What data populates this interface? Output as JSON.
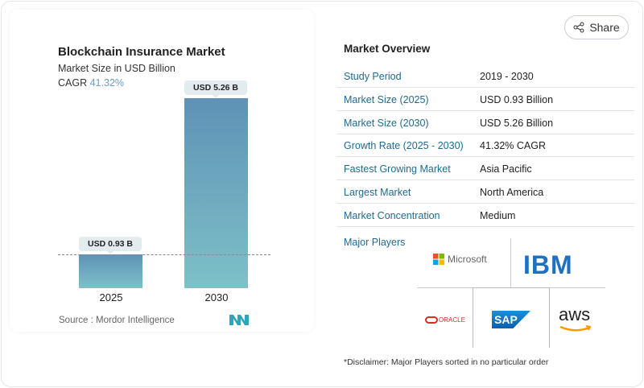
{
  "chart_data": {
    "type": "bar",
    "title": "Blockchain Insurance Market",
    "subtitle": "Market Size in USD Billion",
    "cagr_label": "CAGR",
    "cagr_value": "41.32%",
    "categories": [
      "2025",
      "2030"
    ],
    "values": [
      0.93,
      5.26
    ],
    "data_labels": [
      "USD 0.93 B",
      "USD 5.26 B"
    ],
    "bar_color": "#5f92b6",
    "source": "Source :  Mordor Intelligence",
    "grid": false
  },
  "share_label": "Share",
  "overview": {
    "title": "Market Overview",
    "rows": [
      {
        "k": "Study Period",
        "v": "2019 - 2030"
      },
      {
        "k": "Market Size (2025)",
        "v": "USD 0.93 Billion"
      },
      {
        "k": "Market Size (2030)",
        "v": "USD 5.26 Billion"
      },
      {
        "k": "Growth Rate (2025 - 2030)",
        "v": "41.32% CAGR"
      },
      {
        "k": "Fastest Growing Market",
        "v": "Asia Pacific"
      },
      {
        "k": "Largest Market",
        "v": "North America"
      },
      {
        "k": "Market Concentration",
        "v": "Medium"
      }
    ],
    "players_title": "Major Players",
    "players": [
      "Microsoft",
      "IBM",
      "ORACLE",
      "SAP",
      "aws"
    ],
    "disclaimer": "*Disclaimer: Major Players sorted in no particular order"
  }
}
